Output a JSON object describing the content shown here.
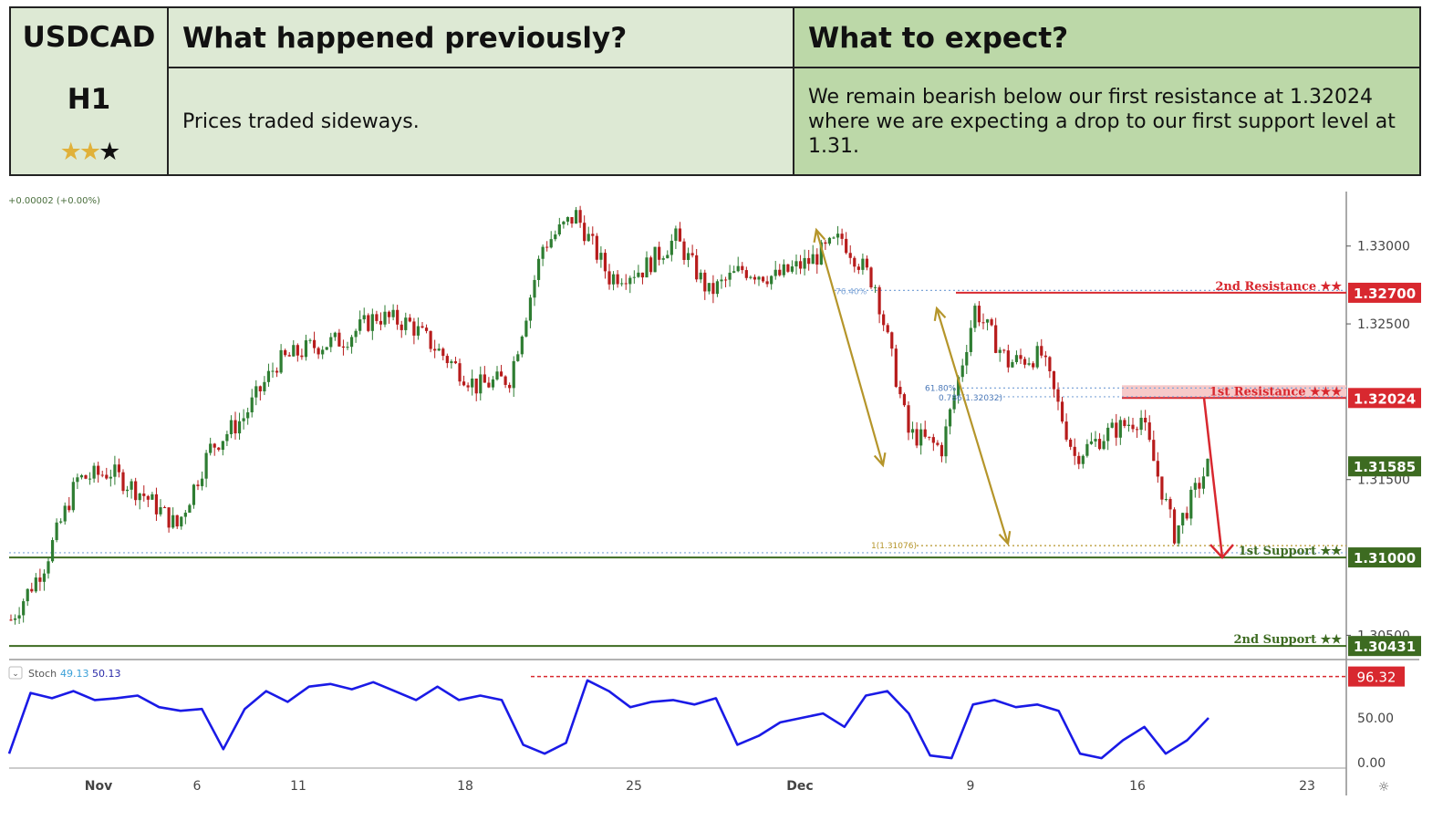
{
  "header": {
    "symbol": "USDCAD",
    "timeframe": "H1",
    "rating": {
      "filled": 2,
      "total": 3
    },
    "prev_title": "What happened previously?",
    "prev_text": "Prices traded sideways.",
    "expect_title": "What to expect?",
    "expect_text": "We remain bearish below our first resistance at 1.32024 where we are expecting a drop to our first support level at 1.31."
  },
  "colors": {
    "resistance": "#d8282f",
    "support": "#3d6b21",
    "price_tag": "#3d6b21",
    "fib": "#b5952a",
    "stoch": "#1a1ae6",
    "up_candle": "#2e7d32",
    "down_candle": "#b71c1c",
    "resistance_zone": "#f6c9c9"
  },
  "chart_data": {
    "type": "line",
    "instrument": "USDCAD",
    "timeframe": "H1",
    "change_label": "+0.00002 (+0.00%)",
    "x_ticks": [
      "Nov",
      "6",
      "11",
      "18",
      "25",
      "Dec",
      "9",
      "16",
      "23"
    ],
    "y_ticks": [
      "1.33000",
      "1.32500",
      "1.31500",
      "1.30500"
    ],
    "ylim": [
      1.3035,
      1.3335
    ],
    "series": [
      {
        "name": "",
        "x": [
          "Oct 29",
          "Oct 30",
          "Oct 31",
          "Nov 1",
          "Nov 4",
          "Nov 5",
          "Nov 6",
          "Nov 7",
          "Nov 8",
          "Nov 11",
          "Nov 12",
          "Nov 13",
          "Nov 14",
          "Nov 15",
          "Nov 18",
          "Nov 19",
          "Nov 20",
          "Nov 21",
          "Nov 22",
          "Nov 25",
          "Nov 26",
          "Nov 27",
          "Nov 28",
          "Nov 29",
          "Dec 2",
          "Dec 3",
          "Dec 4",
          "Dec 5",
          "Dec 6",
          "Dec 9",
          "Dec 10",
          "Dec 11",
          "Dec 12",
          "Dec 13",
          "Dec 16",
          "Dec 17",
          "Dec 18"
        ],
        "values": [
          1.306,
          1.3095,
          1.315,
          1.3155,
          1.314,
          1.312,
          1.317,
          1.319,
          1.3225,
          1.3235,
          1.324,
          1.3255,
          1.325,
          1.323,
          1.321,
          1.3215,
          1.33,
          1.332,
          1.328,
          1.3285,
          1.3305,
          1.327,
          1.3285,
          1.328,
          1.329,
          1.3305,
          1.3275,
          1.318,
          1.317,
          1.326,
          1.3225,
          1.323,
          1.3165,
          1.318,
          1.319,
          1.3115,
          1.31585
        ]
      }
    ],
    "levels": [
      {
        "label": "2nd Resistance ★★",
        "value": "1.32700",
        "kind": "resistance"
      },
      {
        "label": "1st Resistance ★★★",
        "value": "1.32024",
        "kind": "resistance"
      },
      {
        "label": "",
        "value": "1.31585",
        "kind": "current"
      },
      {
        "label": "1st Support ★★",
        "value": "1.31000",
        "kind": "support"
      },
      {
        "label": "2nd Support ★★",
        "value": "1.30431",
        "kind": "support"
      }
    ],
    "fib_labels": [
      "76.40%",
      "61.80%",
      "0.786(1.32032)",
      "1(1.31076)"
    ],
    "stochastic": {
      "label": "Stoch",
      "k": "49.13",
      "d": "50.13",
      "y_ticks": [
        "50.00",
        "0.00"
      ],
      "ylim": [
        0,
        100
      ],
      "level": "96.32",
      "values": [
        10,
        78,
        72,
        80,
        70,
        72,
        75,
        62,
        58,
        60,
        15,
        60,
        80,
        68,
        85,
        88,
        82,
        90,
        80,
        70,
        85,
        70,
        75,
        70,
        20,
        10,
        22,
        92,
        80,
        62,
        68,
        70,
        65,
        72,
        20,
        30,
        45,
        50,
        55,
        40,
        75,
        80,
        55,
        8,
        5,
        65,
        70,
        62,
        65,
        58,
        10,
        5,
        25,
        40,
        10,
        25,
        50
      ]
    }
  }
}
